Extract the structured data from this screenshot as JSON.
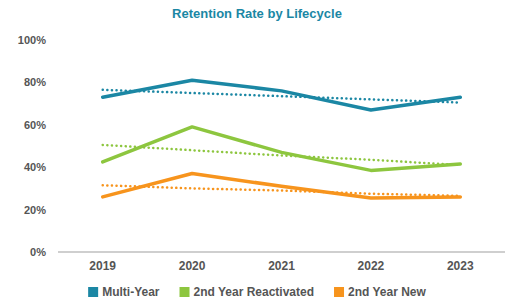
{
  "chart_data": {
    "type": "line",
    "title": "Retention Rate by Lifecycle",
    "categories": [
      "2019",
      "2020",
      "2021",
      "2022",
      "2023"
    ],
    "series": [
      {
        "name": "Multi-Year",
        "color": "#1b87a4",
        "values": [
          73,
          81,
          76,
          67,
          73
        ],
        "line_style": "solid"
      },
      {
        "name": "2nd Year Reactivated",
        "color": "#8dc63f",
        "values": [
          42.5,
          59,
          47,
          38.5,
          41.5
        ],
        "line_style": "solid"
      },
      {
        "name": "2nd Year New",
        "color": "#f7941d",
        "values": [
          26,
          37,
          31,
          25.5,
          26
        ],
        "line_style": "solid"
      },
      {
        "color": "#1b87a4",
        "values": [
          76.5,
          75,
          73.5,
          72,
          70.5
        ],
        "line_style": "dotted"
      },
      {
        "color": "#8dc63f",
        "values": [
          50.5,
          48,
          45.5,
          43.5,
          41
        ],
        "line_style": "dotted"
      },
      {
        "color": "#f7941d",
        "values": [
          31.5,
          30,
          29,
          27.5,
          26.5
        ],
        "line_style": "dotted"
      }
    ],
    "ylim": [
      0,
      100
    ],
    "yticks": [
      {
        "value": 0,
        "label": "0%"
      },
      {
        "value": 20,
        "label": "20%"
      },
      {
        "value": 40,
        "label": "40%"
      },
      {
        "value": 60,
        "label": "60%"
      },
      {
        "value": 80,
        "label": "80%"
      },
      {
        "value": 100,
        "label": "100%"
      }
    ],
    "grid": false,
    "legend": "bottom"
  }
}
